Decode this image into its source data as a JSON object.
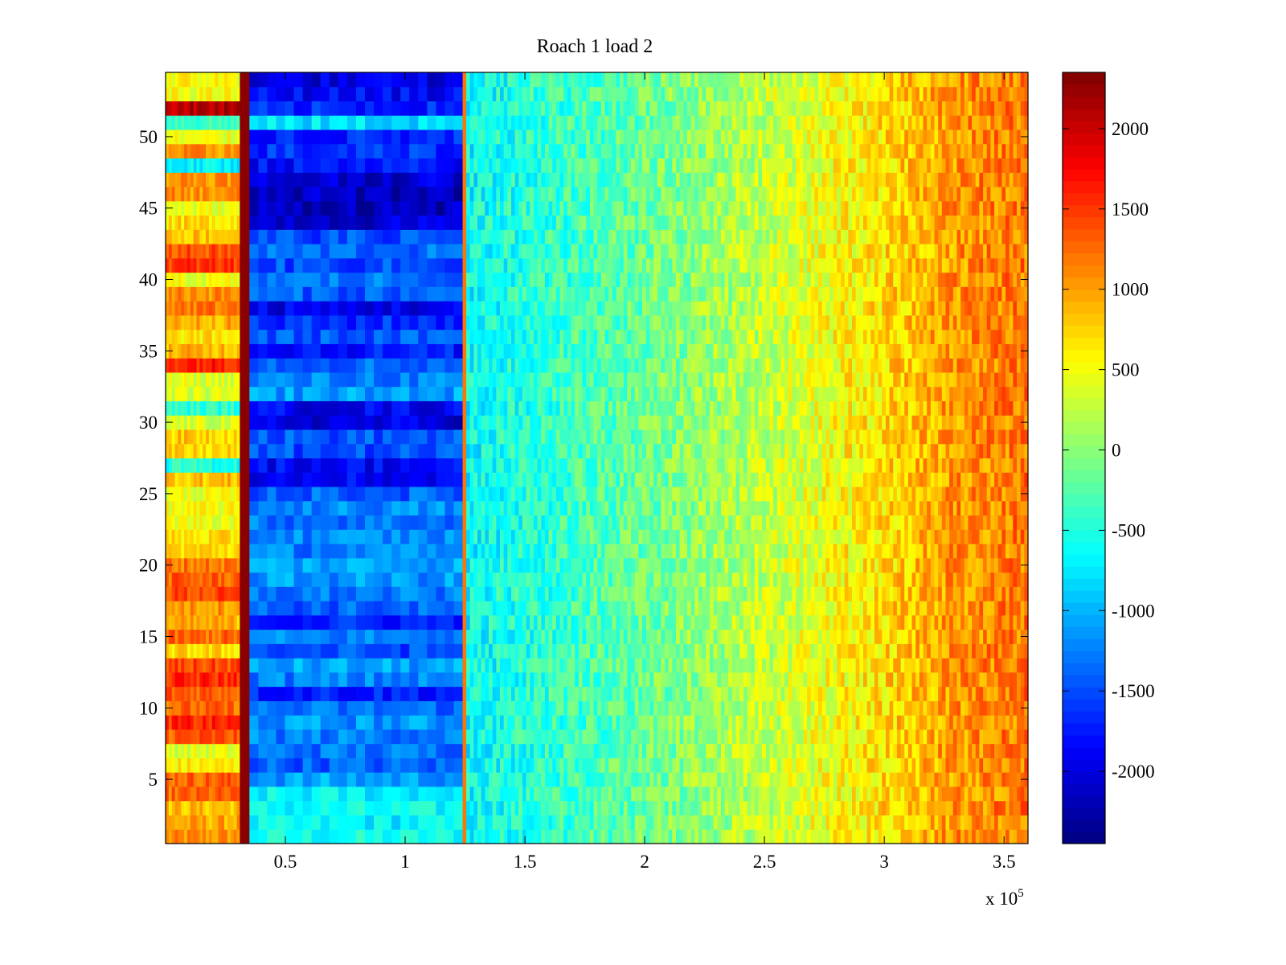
{
  "chart_data": {
    "type": "heatmap",
    "title": "Roach 1 load 2",
    "xlabel": "",
    "ylabel": "",
    "x_multiplier_label": {
      "base": "x 10",
      "exponent": "5"
    },
    "xlim": [
      0,
      3.6
    ],
    "ylim": [
      0.5,
      54.5
    ],
    "xticks": [
      0.5,
      1,
      1.5,
      2,
      2.5,
      3,
      3.5
    ],
    "xtick_labels": [
      "0.5",
      "1",
      "1.5",
      "2",
      "2.5",
      "3",
      "3.5"
    ],
    "yticks": [
      5,
      10,
      15,
      20,
      25,
      30,
      35,
      40,
      45,
      50
    ],
    "ytick_labels": [
      "5",
      "10",
      "15",
      "20",
      "25",
      "30",
      "35",
      "40",
      "45",
      "50"
    ],
    "rows": 54,
    "colormap": "jet",
    "clim": [
      -2450,
      2350
    ],
    "colorbar_ticks": [
      -2000,
      -1500,
      -1000,
      -500,
      0,
      500,
      1000,
      1500,
      2000
    ],
    "colorbar_tick_labels": [
      "-2000",
      "-1500",
      "-1000",
      "-500",
      "0",
      "500",
      "1000",
      "1500",
      "2000"
    ],
    "regions": [
      {
        "x_range": [
          0,
          0.31
        ],
        "description_values": "per-row baseline",
        "row_values": [
          1050,
          950,
          850,
          1250,
          1300,
          600,
          400,
          1350,
          1550,
          1250,
          1350,
          1550,
          1400,
          700,
          1250,
          900,
          1050,
          1400,
          1300,
          1200,
          750,
          650,
          500,
          500,
          450,
          850,
          -500,
          700,
          800,
          350,
          -450,
          350,
          400,
          1650,
          900,
          650,
          950,
          1200,
          1100,
          450,
          1500,
          1350,
          850,
          700,
          450,
          1050,
          1100,
          -700,
          1050,
          450,
          -350,
          2100,
          500,
          550
        ]
      },
      {
        "x_range": [
          0.31,
          0.35
        ],
        "value": 2300
      },
      {
        "x_range": [
          0.35,
          1.24
        ],
        "row_values": [
          -600,
          -700,
          -650,
          -700,
          -1100,
          -1400,
          -1300,
          -1250,
          -1150,
          -1350,
          -1700,
          -1250,
          -1100,
          -1500,
          -1250,
          -1700,
          -1400,
          -1300,
          -1150,
          -1050,
          -1250,
          -1200,
          -1300,
          -1200,
          -1400,
          -1900,
          -1850,
          -1500,
          -1450,
          -2000,
          -1900,
          -1100,
          -1250,
          -1350,
          -1750,
          -1450,
          -1650,
          -1950,
          -1400,
          -1300,
          -1500,
          -1350,
          -1500,
          -2050,
          -2150,
          -2150,
          -2050,
          -1800,
          -1650,
          -1700,
          -800,
          -1700,
          -1850,
          -2000
        ]
      },
      {
        "x_range": [
          1.24,
          1.255
        ],
        "value": 1200
      },
      {
        "x_range": [
          1.255,
          3.6
        ],
        "gradient_values_at_x": {
          "x": [
            1.255,
            2.0,
            2.5,
            3.0,
            3.3,
            3.6
          ],
          "value": [
            -650,
            -150,
            250,
            700,
            1050,
            1200
          ]
        }
      }
    ]
  }
}
